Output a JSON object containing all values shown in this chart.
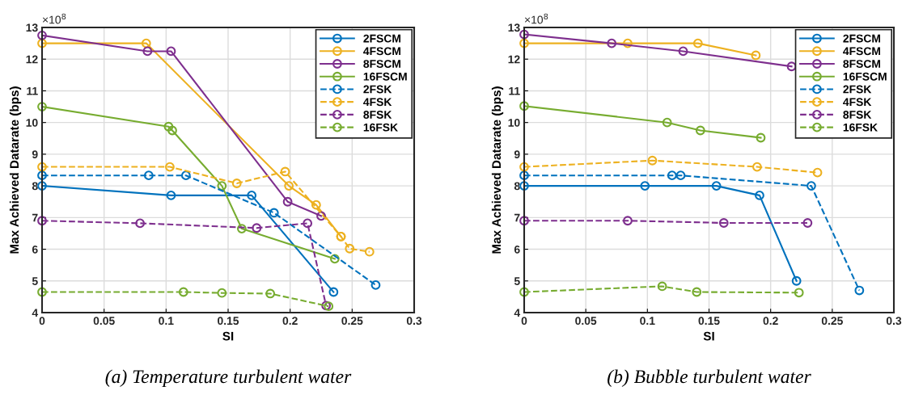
{
  "chart_data": [
    {
      "type": "line",
      "title": "(a) Temperature turbulent water",
      "xlabel": "SI",
      "ylabel": "Max Achieved Datarate (bps)",
      "annotations": [
        "×10$^{8}$"
      ],
      "xlim": [
        0,
        0.3
      ],
      "xticks": [
        0,
        0.05,
        0.1,
        0.15,
        0.2,
        0.25,
        0.3
      ],
      "ylim": [
        4,
        13
      ],
      "yticks": [
        4,
        5,
        6,
        7,
        8,
        9,
        10,
        11,
        12,
        13
      ],
      "grid": true,
      "legend": "top right",
      "marker": "circle",
      "series": [
        {
          "name": "2FSCM",
          "color": "#0072bd",
          "line_style": "solid",
          "x": [
            0,
            0.104,
            0.169,
            0.235
          ],
          "values": [
            8.0,
            7.7,
            7.7,
            4.65
          ]
        },
        {
          "name": "4FSCM",
          "color": "#edb120",
          "line_style": "solid",
          "x": [
            0,
            0.084,
            0.199,
            0.221,
            0.241
          ],
          "values": [
            12.5,
            12.5,
            8.0,
            7.4,
            6.4
          ]
        },
        {
          "name": "8FSCM",
          "color": "#7e2f8e",
          "line_style": "solid",
          "x": [
            0,
            0.085,
            0.104,
            0.198,
            0.225
          ],
          "values": [
            12.75,
            12.25,
            12.25,
            7.5,
            7.05
          ]
        },
        {
          "name": "16FSCM",
          "color": "#77ac30",
          "line_style": "solid",
          "x": [
            0,
            0.102,
            0.105,
            0.145,
            0.161,
            0.236
          ],
          "values": [
            10.5,
            9.87,
            9.75,
            8.0,
            6.65,
            5.7
          ]
        },
        {
          "name": "2FSK",
          "color": "#0072bd",
          "line_style": "dashed",
          "x": [
            0,
            0.086,
            0.116,
            0.187,
            0.269
          ],
          "values": [
            8.33,
            8.33,
            8.33,
            7.15,
            4.87
          ]
        },
        {
          "name": "4FSK",
          "color": "#edb120",
          "line_style": "dashed",
          "x": [
            0,
            0.103,
            0.157,
            0.196,
            0.241,
            0.248,
            0.264
          ],
          "values": [
            8.6,
            8.6,
            8.08,
            8.45,
            6.4,
            6.02,
            5.92
          ]
        },
        {
          "name": "8FSK",
          "color": "#7e2f8e",
          "line_style": "dashed",
          "x": [
            0,
            0.079,
            0.173,
            0.214,
            0.229
          ],
          "values": [
            6.9,
            6.82,
            6.67,
            6.82,
            4.22
          ]
        },
        {
          "name": "16FSK",
          "color": "#77ac30",
          "line_style": "dashed",
          "x": [
            0,
            0.114,
            0.145,
            0.184,
            0.231
          ],
          "values": [
            4.65,
            4.65,
            4.62,
            4.6,
            4.2
          ]
        }
      ]
    },
    {
      "type": "line",
      "title": "(b) Bubble turbulent water",
      "xlabel": "SI",
      "ylabel": "Max Achieved Datarate (bps)",
      "annotations": [
        "×10$^{8}$"
      ],
      "xlim": [
        0,
        0.3
      ],
      "xticks": [
        0,
        0.05,
        0.1,
        0.15,
        0.2,
        0.25,
        0.3
      ],
      "ylim": [
        4,
        13
      ],
      "yticks": [
        4,
        5,
        6,
        7,
        8,
        9,
        10,
        11,
        12,
        13
      ],
      "grid": true,
      "legend": "top right",
      "marker": "circle",
      "series": [
        {
          "name": "2FSCM",
          "color": "#0072bd",
          "line_style": "solid",
          "x": [
            0,
            0.098,
            0.156,
            0.191,
            0.221
          ],
          "values": [
            8.0,
            8.0,
            8.0,
            7.7,
            5.0
          ]
        },
        {
          "name": "4FSCM",
          "color": "#edb120",
          "line_style": "solid",
          "x": [
            0,
            0.084,
            0.141,
            0.188
          ],
          "values": [
            12.5,
            12.5,
            12.5,
            12.12
          ]
        },
        {
          "name": "8FSCM",
          "color": "#7e2f8e",
          "line_style": "solid",
          "x": [
            0,
            0.071,
            0.129,
            0.217
          ],
          "values": [
            12.78,
            12.5,
            12.25,
            11.77
          ]
        },
        {
          "name": "16FSCM",
          "color": "#77ac30",
          "line_style": "solid",
          "x": [
            0,
            0.116,
            0.143,
            0.192
          ],
          "values": [
            10.52,
            10.0,
            9.75,
            9.52
          ]
        },
        {
          "name": "2FSK",
          "color": "#0072bd",
          "line_style": "dashed",
          "x": [
            0,
            0.12,
            0.127,
            0.233,
            0.272
          ],
          "values": [
            8.33,
            8.33,
            8.33,
            8.0,
            4.7
          ]
        },
        {
          "name": "4FSK",
          "color": "#edb120",
          "line_style": "dashed",
          "x": [
            0,
            0.104,
            0.189,
            0.238
          ],
          "values": [
            8.6,
            8.8,
            8.6,
            8.42
          ]
        },
        {
          "name": "8FSK",
          "color": "#7e2f8e",
          "line_style": "dashed",
          "x": [
            0,
            0.084,
            0.162,
            0.23
          ],
          "values": [
            6.9,
            6.9,
            6.83,
            6.83
          ]
        },
        {
          "name": "16FSK",
          "color": "#77ac30",
          "line_style": "dashed",
          "x": [
            0,
            0.112,
            0.14,
            0.223
          ],
          "values": [
            4.65,
            4.83,
            4.65,
            4.63
          ]
        }
      ]
    }
  ]
}
